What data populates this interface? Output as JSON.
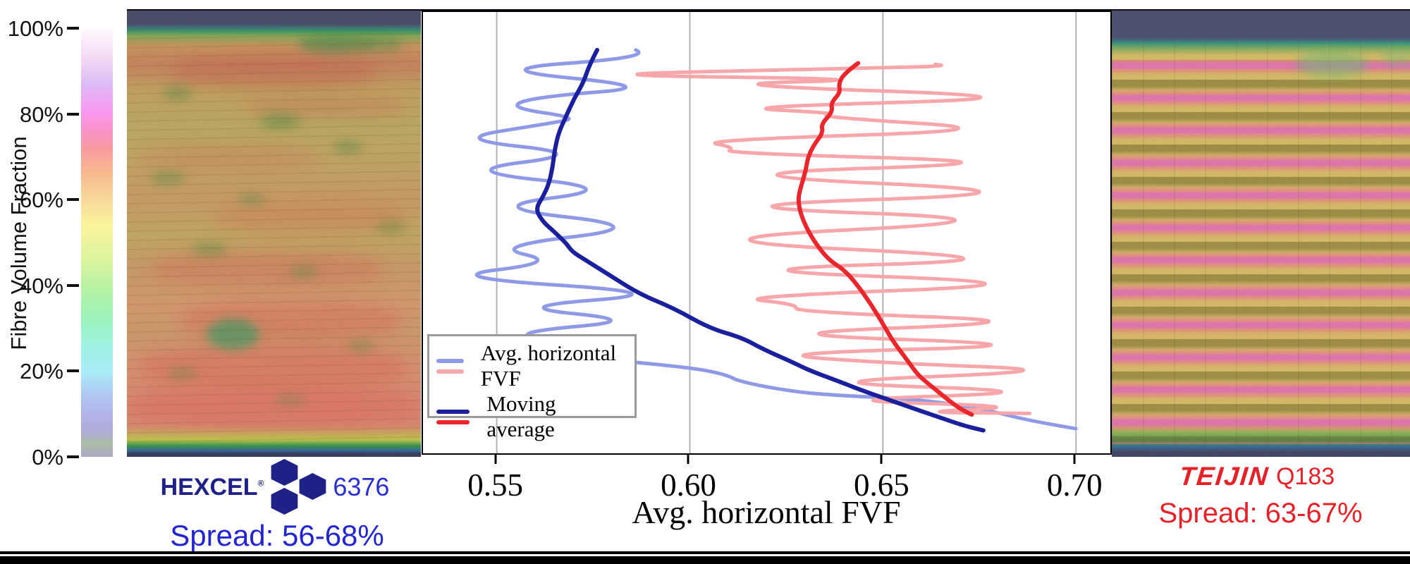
{
  "y_axis": {
    "label": "Fibre Volume Fraction",
    "ticks": [
      {
        "label": "100%",
        "pct": 100
      },
      {
        "label": "80%",
        "pct": 80
      },
      {
        "label": "60%",
        "pct": 60
      },
      {
        "label": "40%",
        "pct": 40
      },
      {
        "label": "20%",
        "pct": 20
      },
      {
        "label": "0%",
        "pct": 0
      }
    ],
    "colorbar_stops": [
      {
        "pct": 0,
        "color": "#aca8c6"
      },
      {
        "pct": 3,
        "color": "#a9bda7"
      },
      {
        "pct": 6,
        "color": "#b0abd9"
      },
      {
        "pct": 10,
        "color": "#b2b4e9"
      },
      {
        "pct": 14,
        "color": "#b0c6f2"
      },
      {
        "pct": 20,
        "color": "#a9ecf8"
      },
      {
        "pct": 26,
        "color": "#9ff2e2"
      },
      {
        "pct": 32,
        "color": "#9bf4bb"
      },
      {
        "pct": 39,
        "color": "#b4f2a3"
      },
      {
        "pct": 46,
        "color": "#dcf49e"
      },
      {
        "pct": 54,
        "color": "#faf59d"
      },
      {
        "pct": 60,
        "color": "#f7d89a"
      },
      {
        "pct": 66,
        "color": "#f8bb90"
      },
      {
        "pct": 72,
        "color": "#f9999f"
      },
      {
        "pct": 77,
        "color": "#fa93d2"
      },
      {
        "pct": 81,
        "color": "#f79af3"
      },
      {
        "pct": 87,
        "color": "#dcbcf6"
      },
      {
        "pct": 93,
        "color": "#f3d9f3"
      },
      {
        "pct": 100,
        "color": "#fdfafd"
      }
    ]
  },
  "left_sample": {
    "brand": "HEXCEL",
    "reg_mark": "®",
    "product": "6376",
    "spread": "Spread: 56-68%",
    "brand_color": "#1f2187",
    "number_color": "#2a2fd0",
    "spread_color": "#2326cf"
  },
  "right_sample": {
    "brand": "TEIJIN",
    "product": "Q183",
    "spread": "Spread: 63-67%",
    "brand_color": "#e62129"
  },
  "legend": {
    "entries": [
      {
        "label": "Avg. horizontal FVF",
        "colors": [
          "#8f9ae6",
          "#f7a6aa"
        ]
      },
      {
        "label": "Moving average",
        "colors": [
          "#1a1f9c",
          "#e8262b"
        ]
      }
    ]
  },
  "chart_data": {
    "type": "line",
    "xlabel": "Avg. horizontal FVF",
    "ylabel_shared_with_colorbar": "Fibre Volume Fraction (%)",
    "x_range": [
      0.5309,
      0.7089
    ],
    "y_range_pct": [
      0.5,
      104.45
    ],
    "grid": "vertical-only",
    "x_ticks": [
      {
        "value": 0.55,
        "label": "0.55"
      },
      {
        "value": 0.6,
        "label": "0.60"
      },
      {
        "value": 0.65,
        "label": "0.65"
      },
      {
        "value": 0.7,
        "label": "0.70"
      }
    ],
    "series": [
      {
        "name": "hexcel_raw",
        "legend": "Avg. horizontal FVF (Hexcel 6376)",
        "color": "#8f9ae6",
        "width": 5,
        "points": [
          [
            0.586,
            95.5
          ],
          [
            0.5905,
            93.8
          ],
          [
            0.546,
            90.9
          ],
          [
            0.593,
            86.8
          ],
          [
            0.5605,
            84.5
          ],
          [
            0.5525,
            82
          ],
          [
            0.5715,
            79.5
          ],
          [
            0.5635,
            78.2
          ],
          [
            0.538,
            74.5
          ],
          [
            0.5745,
            71
          ],
          [
            0.5385,
            67
          ],
          [
            0.5835,
            62.8
          ],
          [
            0.545,
            58.5
          ],
          [
            0.5915,
            53.8
          ],
          [
            0.548,
            49.2
          ],
          [
            0.5665,
            45.5
          ],
          [
            0.534,
            42
          ],
          [
            0.5985,
            38.2
          ],
          [
            0.552,
            35
          ],
          [
            0.588,
            31.8
          ],
          [
            0.556,
            29.2
          ],
          [
            0.5605,
            27.2
          ],
          [
            0.5575,
            25.2
          ],
          [
            0.578,
            22.6
          ],
          [
            0.601,
            20.6
          ],
          [
            0.6095,
            19
          ],
          [
            0.6125,
            17.5
          ],
          [
            0.6235,
            15.5
          ],
          [
            0.6345,
            14.3
          ],
          [
            0.66,
            13.2
          ],
          [
            0.677,
            10.7
          ],
          [
            0.687,
            8.4
          ],
          [
            0.7,
            6.3
          ]
        ]
      },
      {
        "name": "teijin_raw",
        "legend": "Avg. horizontal FVF (Teijin Q183)",
        "color": "#f7a6aa",
        "width": 5,
        "points": [
          [
            0.6635,
            92.1
          ],
          [
            0.67,
            91.7
          ],
          [
            0.6315,
            91
          ],
          [
            0.568,
            89.6
          ],
          [
            0.655,
            88.6
          ],
          [
            0.6,
            87.4
          ],
          [
            0.699,
            84.3
          ],
          [
            0.608,
            82
          ],
          [
            0.6395,
            80.6
          ],
          [
            0.632,
            79.8
          ],
          [
            0.686,
            76.7
          ],
          [
            0.602,
            74.2
          ],
          [
            0.612,
            72.5
          ],
          [
            0.6085,
            71.2
          ],
          [
            0.6925,
            69
          ],
          [
            0.598,
            66.2
          ],
          [
            0.701,
            61.9
          ],
          [
            0.596,
            58.7
          ],
          [
            0.694,
            55.5
          ],
          [
            0.589,
            50.8
          ],
          [
            0.696,
            46.2
          ],
          [
            0.6013,
            43.7
          ],
          [
            0.7,
            40.5
          ],
          [
            0.61,
            37.3
          ],
          [
            0.628,
            35.6
          ],
          [
            0.627,
            33.8
          ],
          [
            0.6965,
            31.5
          ],
          [
            0.612,
            28.6
          ],
          [
            0.699,
            26
          ],
          [
            0.618,
            24
          ],
          [
            0.6495,
            21.8
          ],
          [
            0.702,
            20
          ],
          [
            0.625,
            17.2
          ],
          [
            0.698,
            15
          ],
          [
            0.632,
            13
          ],
          [
            0.69,
            11.5
          ],
          [
            0.6565,
            10.2
          ],
          [
            0.688,
            9.9
          ]
        ]
      },
      {
        "name": "hexcel_moving_average",
        "legend": "Moving average (Hexcel 6376)",
        "color": "#1a1f9c",
        "width": 6,
        "points": [
          [
            0.576,
            95.5
          ],
          [
            0.574,
            92
          ],
          [
            0.5725,
            88
          ],
          [
            0.57,
            84
          ],
          [
            0.568,
            80
          ],
          [
            0.566,
            76
          ],
          [
            0.565,
            72
          ],
          [
            0.5645,
            68
          ],
          [
            0.5635,
            64
          ],
          [
            0.562,
            61
          ],
          [
            0.56,
            58
          ],
          [
            0.562,
            55
          ],
          [
            0.5645,
            53
          ],
          [
            0.568,
            50
          ],
          [
            0.5695,
            48
          ],
          [
            0.573,
            46
          ],
          [
            0.579,
            42.6
          ],
          [
            0.587,
            38
          ],
          [
            0.596,
            34.6
          ],
          [
            0.605,
            30
          ],
          [
            0.6136,
            27.7
          ],
          [
            0.619,
            25
          ],
          [
            0.6265,
            22
          ],
          [
            0.631,
            20
          ],
          [
            0.639,
            17.3
          ],
          [
            0.6455,
            15
          ],
          [
            0.655,
            12
          ],
          [
            0.6645,
            9
          ],
          [
            0.671,
            7
          ],
          [
            0.676,
            5.9
          ]
        ]
      },
      {
        "name": "teijin_moving_average",
        "legend": "Moving average (Teijin Q183)",
        "color": "#e8262b",
        "width": 6,
        "points": [
          [
            0.6436,
            92.4
          ],
          [
            0.64,
            90
          ],
          [
            0.6385,
            87.5
          ],
          [
            0.639,
            85.5
          ],
          [
            0.6365,
            83
          ],
          [
            0.637,
            81
          ],
          [
            0.634,
            78
          ],
          [
            0.6345,
            76
          ],
          [
            0.632,
            73
          ],
          [
            0.6305,
            70
          ],
          [
            0.63,
            67
          ],
          [
            0.629,
            64
          ],
          [
            0.628,
            60.7
          ],
          [
            0.6285,
            57.5
          ],
          [
            0.63,
            54
          ],
          [
            0.6325,
            50
          ],
          [
            0.636,
            46
          ],
          [
            0.64,
            43.7
          ],
          [
            0.6435,
            40
          ],
          [
            0.647,
            35.5
          ],
          [
            0.65,
            31
          ],
          [
            0.6525,
            27
          ],
          [
            0.656,
            22.8
          ],
          [
            0.659,
            19
          ],
          [
            0.662,
            16.7
          ],
          [
            0.667,
            13
          ],
          [
            0.67,
            11
          ],
          [
            0.673,
            9.6
          ]
        ]
      }
    ]
  }
}
